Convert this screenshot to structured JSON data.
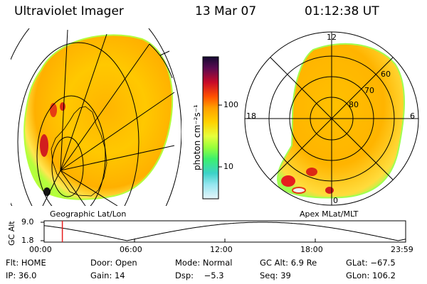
{
  "header": {
    "instrument": "Ultraviolet Imager",
    "date": "13 Mar 07",
    "time": "01:12:38 UT"
  },
  "colorbar": {
    "unit_label": "photon cm⁻²s⁻¹",
    "ticks": [
      "100",
      "10"
    ],
    "colors": [
      "#1a0a3a",
      "#6b0a4a",
      "#c40a28",
      "#ff5a00",
      "#ffa000",
      "#ffd200",
      "#e6ff3c",
      "#9cff3c",
      "#3cf06e",
      "#3cd2c8",
      "#8ce6f0",
      "#d2f0fa"
    ]
  },
  "left_panel": {
    "caption": "Geographic Lat/Lon"
  },
  "right_panel": {
    "caption": "Apex MLat/MLT",
    "mlt_labels": {
      "top": "12",
      "left": "18",
      "right": "6",
      "bottom": "0"
    },
    "mlat_labels": [
      "60",
      "70",
      "80"
    ]
  },
  "altitude_plot": {
    "ylabel": "GC Alt",
    "yticks": [
      "9.0",
      "1.8"
    ],
    "xticks": [
      "00:00",
      "06:00",
      "12:00",
      "18:00",
      "23:59"
    ],
    "current_time_hours": 1.21
  },
  "info": {
    "row1": {
      "filter": "Flt: HOME",
      "door": "Door: Open",
      "mode": "Mode: Normal",
      "gc_alt": "GC Alt: 6.9 Re",
      "glat": "GLat: −67.5"
    },
    "row2": {
      "ip": "IP: 36.0",
      "gain": "Gain: 14",
      "dsp": "Dsp:    −5.3",
      "seq": "Seq: 39",
      "glon": "GLon: 106.2"
    }
  }
}
